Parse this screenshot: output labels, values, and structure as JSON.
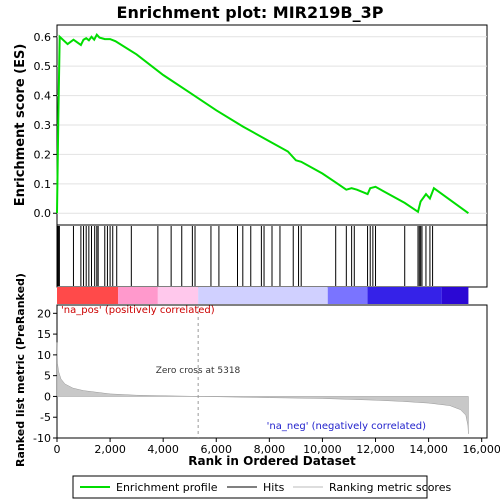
{
  "chart_data": {
    "type": "line",
    "title": "Enrichment plot: MIR219B_3P",
    "panels": {
      "es": {
        "ylabel": "Enrichment score (ES)",
        "ylim": [
          -0.04,
          0.64
        ],
        "yticks": [
          0.0,
          0.1,
          0.2,
          0.3,
          0.4,
          0.5,
          0.6
        ],
        "ytick_labels": [
          "0.0",
          "0.1",
          "0.2",
          "0.3",
          "0.4",
          "0.5",
          "0.6"
        ],
        "grid": true
      },
      "ranked": {
        "ylabel": "Ranked list metric (PreRanked)",
        "ylim": [
          -10,
          22
        ],
        "yticks": [
          -10,
          -5,
          0,
          5,
          10,
          15,
          20
        ],
        "ytick_labels": [
          "-10",
          "-5",
          "0",
          "5",
          "10",
          "15",
          "20"
        ],
        "annotations": {
          "pos": "'na_pos' (positively correlated)",
          "neg": "'na_neg' (negatively correlated)",
          "zero_cross": "Zero cross at 5318"
        },
        "zero_cross": 5318
      }
    },
    "xlabel": "Rank in Ordered Dataset",
    "xlim": [
      0,
      16200
    ],
    "xticks": [
      0,
      2000,
      4000,
      6000,
      8000,
      10000,
      12000,
      14000,
      16000
    ],
    "xtick_labels": [
      "0",
      "2,000",
      "4,000",
      "6,000",
      "8,000",
      "10,000",
      "12,000",
      "14,000",
      "16,000"
    ],
    "n_genes": 15500,
    "series": [
      {
        "name": "Enrichment profile",
        "color": "#00dd00",
        "x": [
          0,
          50,
          100,
          400,
          620,
          900,
          1000,
          1100,
          1200,
          1300,
          1400,
          1500,
          1600,
          1800,
          2000,
          2200,
          3000,
          4000,
          5000,
          6000,
          7000,
          8000,
          8700,
          9000,
          9200,
          10000,
          10500,
          10900,
          11100,
          11300,
          11700,
          11800,
          12000,
          13100,
          13600,
          13700,
          13900,
          14050,
          14200,
          15500
        ],
        "y": [
          0.0,
          0.32,
          0.6,
          0.575,
          0.59,
          0.572,
          0.59,
          0.595,
          0.588,
          0.6,
          0.59,
          0.607,
          0.597,
          0.592,
          0.592,
          0.585,
          0.54,
          0.47,
          0.41,
          0.35,
          0.295,
          0.245,
          0.21,
          0.18,
          0.175,
          0.135,
          0.105,
          0.08,
          0.085,
          0.08,
          0.065,
          0.085,
          0.09,
          0.035,
          0.005,
          0.04,
          0.065,
          0.05,
          0.085,
          0.0
        ]
      }
    ],
    "hits": [
      10,
      30,
      60,
      90,
      620,
      900,
      1000,
      1100,
      1200,
      1300,
      1420,
      1500,
      1550,
      1800,
      1900,
      2000,
      2100,
      2250,
      2800,
      3800,
      4300,
      4700,
      5100,
      5200,
      5800,
      6100,
      6800,
      7000,
      7300,
      7700,
      7800,
      8100,
      8400,
      8900,
      9100,
      9200,
      10500,
      10900,
      11100,
      11200,
      11700,
      11800,
      11900,
      12000,
      13100,
      13600,
      13650,
      13700,
      13750,
      13900,
      14050,
      14150
    ],
    "colorbar": {
      "colors_pos": [
        "#ff4a4a",
        "#ff99cc",
        "#ffc8ec"
      ],
      "colors_neg": [
        "#d0d0ff",
        "#7a74ff",
        "#3522e8",
        "#2b08d4"
      ]
    },
    "metric_curve": {
      "x": [
        0,
        20,
        60,
        150,
        300,
        600,
        1000,
        2000,
        3000,
        5318,
        8000,
        10000,
        12000,
        13000,
        14000,
        14800,
        15200,
        15400,
        15480,
        15500
      ],
      "y": [
        13,
        8,
        6,
        4.2,
        3,
        2,
        1.4,
        0.6,
        0.3,
        0,
        -0.3,
        -0.5,
        -0.9,
        -1.2,
        -1.6,
        -2.2,
        -3.2,
        -4.5,
        -7,
        -9
      ]
    },
    "legend": [
      {
        "label": "Enrichment profile",
        "color": "#00dd00"
      },
      {
        "label": "Hits",
        "color": "#000000"
      },
      {
        "label": "Ranking metric scores",
        "color": "#bbbbbb"
      }
    ]
  }
}
